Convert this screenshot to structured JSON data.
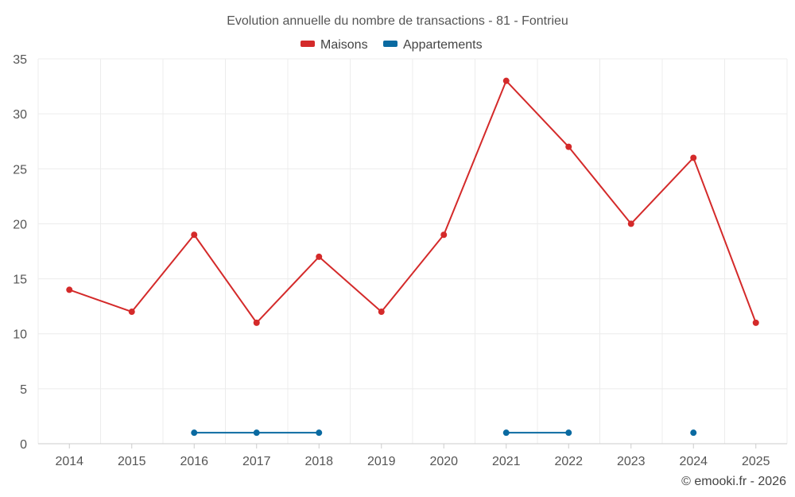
{
  "chart_data": {
    "type": "line",
    "title": "Evolution annuelle du nombre de transactions - 81 - Fontrieu",
    "categories": [
      "2014",
      "2015",
      "2016",
      "2017",
      "2018",
      "2019",
      "2020",
      "2021",
      "2022",
      "2023",
      "2024",
      "2025"
    ],
    "series": [
      {
        "name": "Maisons",
        "color": "#d42a2a",
        "values": [
          14,
          12,
          19,
          11,
          17,
          12,
          19,
          33,
          27,
          20,
          26,
          11
        ]
      },
      {
        "name": "Appartements",
        "color": "#0a6aa1",
        "values": [
          null,
          null,
          1,
          1,
          1,
          null,
          null,
          1,
          1,
          null,
          1,
          null
        ]
      }
    ],
    "ylim": [
      0,
      35
    ],
    "yticks": [
      "0",
      "5",
      "10",
      "15",
      "20",
      "25",
      "30",
      "35"
    ],
    "grid": true,
    "legend_position": "top-center"
  },
  "credit": "© emooki.fr - 2026"
}
